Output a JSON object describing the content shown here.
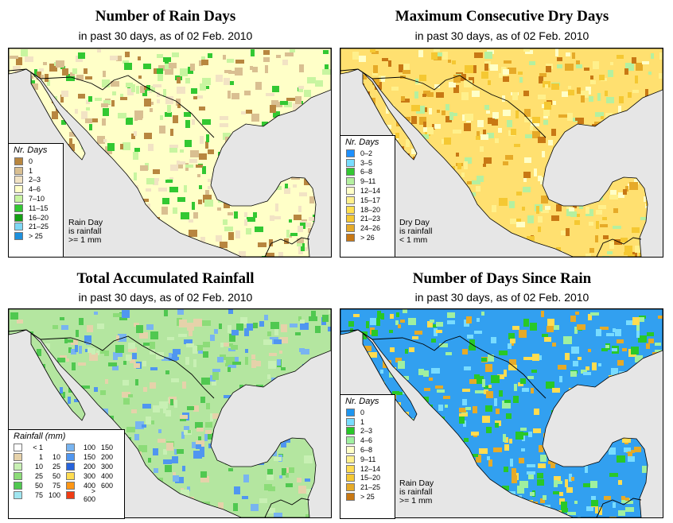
{
  "panels": [
    {
      "title": "Number of Rain Days",
      "subtitle": "in past 30 days, as of  02 Feb. 2010",
      "legend_title": "Nr. Days",
      "land_color": "#ffffc8",
      "legend": [
        {
          "label": "0",
          "color": "#b8863f"
        },
        {
          "label": "1",
          "color": "#d9bf91"
        },
        {
          "label": "2–3",
          "color": "#f2e3c4"
        },
        {
          "label": "4–6",
          "color": "#ffffc8"
        },
        {
          "label": "7–10",
          "color": "#c8f5a0"
        },
        {
          "label": "11–15",
          "color": "#32c832"
        },
        {
          "label": "16–20",
          "color": "#14a014"
        },
        {
          "label": "21–25",
          "color": "#7ed7f5"
        },
        {
          "label": "> 25",
          "color": "#1e90dc"
        }
      ],
      "note": [
        "Rain Day",
        "is rainfall",
        ">= 1 mm"
      ]
    },
    {
      "title": "Maximum Consecutive Dry Days",
      "subtitle": "in past 30 days, as of  02 Feb. 2010",
      "legend_title": "Nr. Days",
      "land_color": "#ffe070",
      "legend": [
        {
          "label": "0–2",
          "color": "#1e90ff"
        },
        {
          "label": "3–5",
          "color": "#78dcff"
        },
        {
          "label": "6–8",
          "color": "#32c832"
        },
        {
          "label": "9–11",
          "color": "#b4f0a0"
        },
        {
          "label": "12–14",
          "color": "#ffffc8"
        },
        {
          "label": "15–17",
          "color": "#fff08c"
        },
        {
          "label": "18–20",
          "color": "#ffe050"
        },
        {
          "label": "21–23",
          "color": "#f5c832"
        },
        {
          "label": "24–26",
          "color": "#e6aa28"
        },
        {
          "label": "> 26",
          "color": "#c87814"
        }
      ],
      "note": [
        "Dry Day",
        "is rainfall",
        "< 1 mm"
      ]
    },
    {
      "title": "Total Accumulated Rainfall",
      "subtitle": "in past 30 days, as of  02 Feb. 2010",
      "legend_title": "Rainfall (mm)",
      "land_color": "#b4e6a0",
      "legend_left": [
        {
          "lo": "< 1",
          "hi": "",
          "color": "#ffffff"
        },
        {
          "lo": "1",
          "hi": "10",
          "color": "#e6d2aa"
        },
        {
          "lo": "10",
          "hi": "25",
          "color": "#c8f0b4"
        },
        {
          "lo": "25",
          "hi": "50",
          "color": "#8cdc78"
        },
        {
          "lo": "50",
          "hi": "75",
          "color": "#50c850"
        },
        {
          "lo": "75",
          "hi": "100",
          "color": "#a0e6f0"
        }
      ],
      "legend_right": [
        {
          "lo": "100",
          "hi": "150",
          "color": "#78b4f0"
        },
        {
          "lo": "150",
          "hi": "200",
          "color": "#5096f0"
        },
        {
          "lo": "200",
          "hi": "300",
          "color": "#2864dc"
        },
        {
          "lo": "300",
          "hi": "400",
          "color": "#ffdc50"
        },
        {
          "lo": "400",
          "hi": "600",
          "color": "#ff9614"
        },
        {
          "lo": "> 600",
          "hi": "",
          "color": "#f03c14"
        }
      ]
    },
    {
      "title": "Number of Days Since Rain",
      "subtitle": "in past 30 days, as of  02 Feb. 2010",
      "legend_title": "Nr. Days",
      "land_color": "#32a0f0",
      "legend": [
        {
          "label": "0",
          "color": "#1e96f0"
        },
        {
          "label": "1",
          "color": "#78dcff"
        },
        {
          "label": "2–3",
          "color": "#28c828"
        },
        {
          "label": "4–6",
          "color": "#a0f0a0"
        },
        {
          "label": "6–8",
          "color": "#ffffc8"
        },
        {
          "label": "9–11",
          "color": "#fff08c"
        },
        {
          "label": "12–14",
          "color": "#ffdc50"
        },
        {
          "label": "15–20",
          "color": "#f5c832"
        },
        {
          "label": "21–25",
          "color": "#e6aa28"
        },
        {
          "label": "> 25",
          "color": "#c87814"
        }
      ],
      "note": [
        "Rain Day",
        "is rainfall",
        ">= 1 mm"
      ]
    }
  ]
}
